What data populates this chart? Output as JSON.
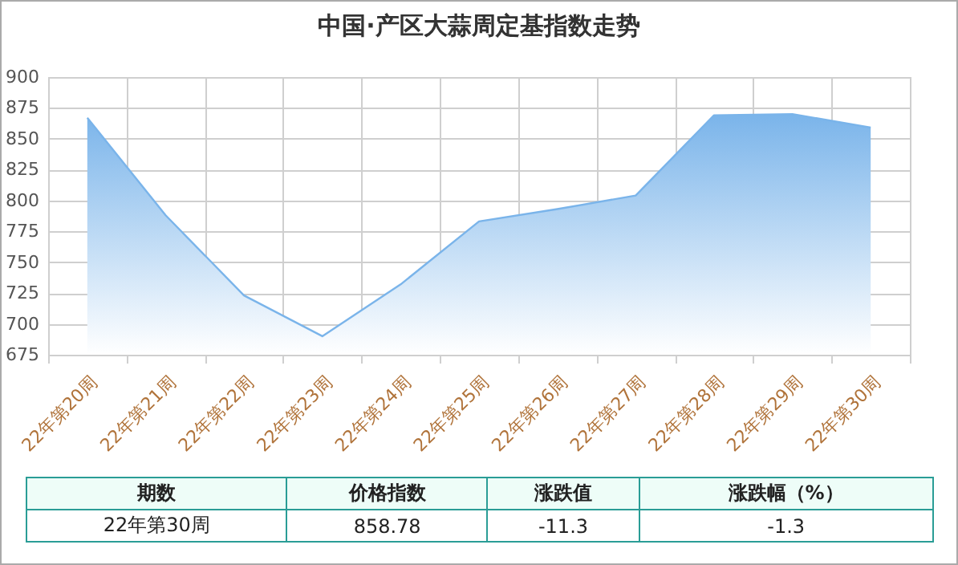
{
  "chart_data": {
    "type": "area",
    "title": "中国·产区大蒜周定基指数走势",
    "categories": [
      "22年第20周",
      "22年第21周",
      "22年第22周",
      "22年第23周",
      "22年第24周",
      "22年第25周",
      "22年第26周",
      "22年第27周",
      "22年第28周",
      "22年第29周",
      "22年第30周"
    ],
    "series": [
      {
        "color": "#7ab4ea",
        "values": [
          867,
          788,
          723,
          690,
          732,
          783,
          793,
          804,
          869,
          870,
          859
        ]
      }
    ],
    "ylim": [
      675,
      900
    ],
    "yticks": [
      675,
      700,
      725,
      750,
      775,
      800,
      825,
      850,
      875,
      900
    ],
    "grid": true,
    "annotations": [
      "期数",
      "价格指数",
      "涨跌值",
      "涨跌幅（%）",
      "22年第30周",
      "858.78",
      "-11.3",
      "-1.3"
    ]
  }
}
